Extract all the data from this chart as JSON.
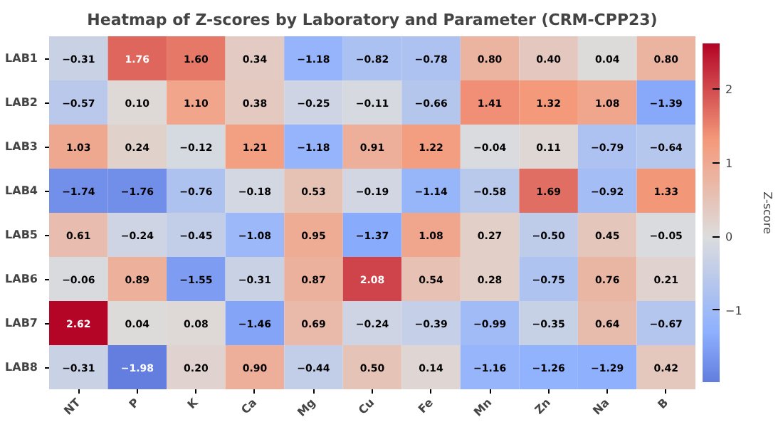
{
  "chart_data": {
    "type": "heatmap",
    "title": "Heatmap of Z-scores by Laboratory and Parameter (CRM-CPP23)",
    "categories": [
      "NT",
      "P",
      "K",
      "Ca",
      "Mg",
      "Cu",
      "Fe",
      "Mn",
      "Zn",
      "Na",
      "B"
    ],
    "y_categories": [
      "LAB1",
      "LAB2",
      "LAB3",
      "LAB4",
      "LAB5",
      "LAB6",
      "LAB7",
      "LAB8"
    ],
    "cells": [
      [
        -0.31,
        1.76,
        1.6,
        0.34,
        -1.18,
        -0.82,
        -0.78,
        0.8,
        0.4,
        0.04,
        0.8
      ],
      [
        -0.57,
        0.1,
        1.1,
        0.38,
        -0.25,
        -0.11,
        -0.66,
        1.41,
        1.32,
        1.08,
        -1.39
      ],
      [
        1.03,
        0.24,
        -0.12,
        1.21,
        -1.18,
        0.91,
        1.22,
        -0.04,
        0.11,
        -0.79,
        -0.64
      ],
      [
        -1.74,
        -1.76,
        -0.76,
        -0.18,
        0.53,
        -0.19,
        -1.14,
        -0.58,
        1.69,
        -0.92,
        1.33
      ],
      [
        0.61,
        -0.24,
        -0.45,
        -1.08,
        0.95,
        -1.37,
        1.08,
        0.27,
        -0.5,
        0.45,
        -0.05
      ],
      [
        -0.06,
        0.89,
        -1.55,
        -0.31,
        0.87,
        2.08,
        0.54,
        0.28,
        -0.75,
        0.76,
        0.21
      ],
      [
        2.62,
        0.04,
        0.08,
        -1.46,
        0.69,
        -0.24,
        -0.39,
        -0.99,
        -0.35,
        0.64,
        -0.67
      ],
      [
        -0.31,
        -1.98,
        0.2,
        0.9,
        -0.44,
        0.5,
        0.14,
        -1.16,
        -1.26,
        -1.29,
        0.42
      ]
    ],
    "cell_labels": [
      [
        "−0.31",
        "1.76",
        "1.60",
        "0.34",
        "−1.18",
        "−0.82",
        "−0.78",
        "0.80",
        "0.40",
        "0.04",
        "0.80"
      ],
      [
        "−0.57",
        "0.10",
        "1.10",
        "0.38",
        "−0.25",
        "−0.11",
        "−0.66",
        "1.41",
        "1.32",
        "1.08",
        "−1.39"
      ],
      [
        "1.03",
        "0.24",
        "−0.12",
        "1.21",
        "−1.18",
        "0.91",
        "1.22",
        "−0.04",
        "0.11",
        "−0.79",
        "−0.64"
      ],
      [
        "−1.74",
        "−1.76",
        "−0.76",
        "−0.18",
        "0.53",
        "−0.19",
        "−1.14",
        "−0.58",
        "1.69",
        "−0.92",
        "1.33"
      ],
      [
        "0.61",
        "−0.24",
        "−0.45",
        "−1.08",
        "0.95",
        "−1.37",
        "1.08",
        "0.27",
        "−0.50",
        "0.45",
        "−0.05"
      ],
      [
        "−0.06",
        "0.89",
        "−1.55",
        "−0.31",
        "0.87",
        "2.08",
        "0.54",
        "0.28",
        "−0.75",
        "0.76",
        "0.21"
      ],
      [
        "2.62",
        "0.04",
        "0.08",
        "−1.46",
        "0.69",
        "−0.24",
        "−0.39",
        "−0.99",
        "−0.35",
        "0.64",
        "−0.67"
      ],
      [
        "−0.31",
        "−1.98",
        "0.20",
        "0.90",
        "−0.44",
        "0.50",
        "0.14",
        "−1.16",
        "−1.26",
        "−1.29",
        "0.42"
      ]
    ],
    "clabel": "Z-score",
    "clim": [
      -1.98,
      2.62
    ],
    "cticks": [
      -1,
      0,
      1,
      2
    ]
  }
}
